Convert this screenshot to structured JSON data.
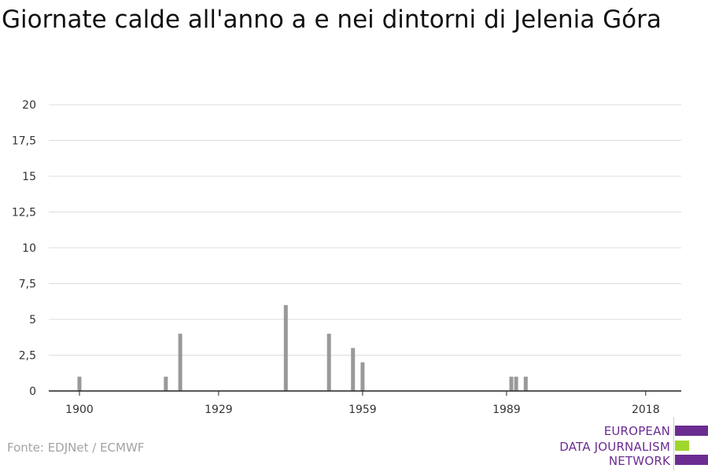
{
  "chart_data": {
    "type": "bar",
    "title": "Giornate calde all'anno a e nei dintorni di Jelenia Góra",
    "xlabel": "",
    "ylabel": "",
    "x": [
      1900,
      1901,
      1902,
      1903,
      1904,
      1905,
      1906,
      1907,
      1908,
      1909,
      1910,
      1911,
      1912,
      1913,
      1914,
      1915,
      1916,
      1917,
      1918,
      1919,
      1920,
      1921,
      1922,
      1923,
      1924,
      1925,
      1926,
      1927,
      1928,
      1929,
      1930,
      1931,
      1932,
      1933,
      1934,
      1935,
      1936,
      1937,
      1938,
      1939,
      1940,
      1941,
      1942,
      1943,
      1944,
      1945,
      1946,
      1947,
      1948,
      1949,
      1950,
      1951,
      1952,
      1953,
      1954,
      1955,
      1956,
      1957,
      1958,
      1959,
      1960,
      1961,
      1962,
      1963,
      1964,
      1965,
      1966,
      1967,
      1968,
      1969,
      1970,
      1971,
      1972,
      1973,
      1974,
      1975,
      1976,
      1977,
      1978,
      1979,
      1980,
      1981,
      1982,
      1983,
      1984,
      1985,
      1986,
      1987,
      1988,
      1989,
      1990,
      1991,
      1992,
      1993,
      1994,
      1995,
      1996,
      1997,
      1998,
      1999,
      2000,
      2001,
      2002,
      2003,
      2004,
      2005,
      2006,
      2007,
      2008,
      2009,
      2010,
      2011,
      2012,
      2013,
      2014,
      2015,
      2016,
      2017,
      2018
    ],
    "values": [
      1,
      0,
      0,
      0,
      0,
      0,
      0,
      0,
      0,
      0,
      0,
      0,
      0,
      0,
      0,
      0,
      0,
      0,
      1,
      0,
      0,
      4,
      0,
      0,
      0,
      0,
      0,
      0,
      0,
      0,
      0,
      0,
      0,
      0,
      0,
      0,
      0,
      0,
      0,
      0,
      0,
      0,
      0,
      6,
      0,
      0,
      0,
      0,
      0,
      0,
      0,
      0,
      4,
      0,
      0,
      0,
      0,
      3,
      0,
      2,
      0,
      0,
      0,
      0,
      0,
      0,
      0,
      0,
      0,
      0,
      0,
      0,
      0,
      0,
      0,
      0,
      0,
      0,
      0,
      0,
      0,
      0,
      0,
      0,
      0,
      0,
      0,
      0,
      0,
      0,
      1,
      1,
      0,
      1,
      0,
      0,
      0,
      0,
      0,
      0,
      0,
      0,
      0,
      0,
      0,
      0,
      0,
      0,
      0,
      0,
      0,
      0,
      0,
      0,
      0,
      0,
      0,
      0,
      0
    ],
    "ylim": [
      0,
      20
    ],
    "yticks": [
      "0",
      "2,5",
      "5",
      "7,5",
      "10",
      "12,5",
      "15",
      "17,5",
      "20"
    ],
    "xticks": [
      "1900",
      "1929",
      "1959",
      "1989",
      "2018"
    ],
    "grid": true,
    "bar_color": "#999999"
  },
  "source": "Fonte: EDJNet / ECMWF",
  "logo": {
    "lines": [
      "EUROPEAN",
      "DATA JOURNALISM",
      "NETWORK"
    ],
    "colors": [
      "#6b2c91",
      "#9fd62b",
      "#6b2c91"
    ]
  }
}
